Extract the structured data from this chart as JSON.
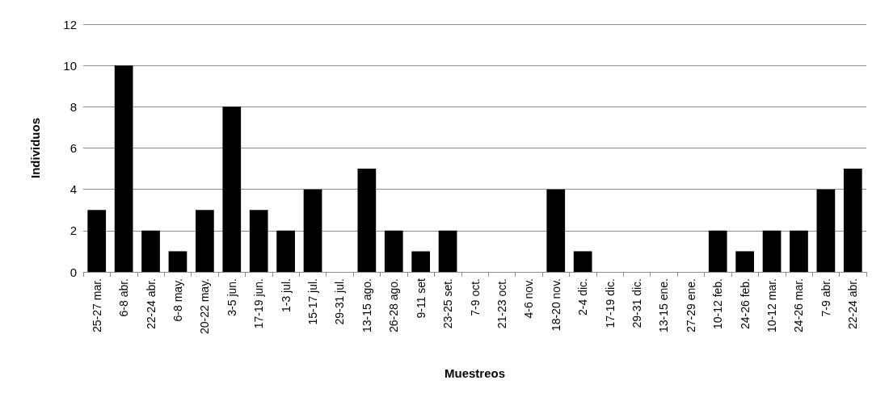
{
  "chart_data": {
    "type": "bar",
    "xlabel": "Muestreos",
    "ylabel": "Individuos",
    "categories": [
      "25-27 mar.",
      "6-8 abr.",
      "22-24 abr.",
      "6-8 may.",
      "20-22 may.",
      "3-5 jun.",
      "17-19 jun.",
      "1-3 jul.",
      "15-17 jul.",
      "29-31 jul.",
      "13-15 ago.",
      "26-28 ago.",
      "9-11 set",
      "23-25 set.",
      "7-9 oct.",
      "21-23 oct.",
      "4-6 nov.",
      "18-20 nov.",
      "2-4 dic.",
      "17-19 dic.",
      "29-31 dic.",
      "13-15 ene.",
      "27-29 ene.",
      "10-12 feb.",
      "24-26 feb.",
      "10-12 mar.",
      "24-26 mar.",
      "7-9 abr.",
      "22-24 abr."
    ],
    "values": [
      3,
      10,
      2,
      1,
      3,
      8,
      3,
      2,
      4,
      0,
      5,
      2,
      1,
      2,
      0,
      0,
      0,
      4,
      1,
      0,
      0,
      0,
      0,
      2,
      1,
      2,
      2,
      4,
      5
    ],
    "color": "#000000",
    "ylim": [
      0,
      12
    ],
    "yticks": [
      0,
      2,
      4,
      6,
      8,
      10,
      12
    ],
    "grid": "y"
  }
}
